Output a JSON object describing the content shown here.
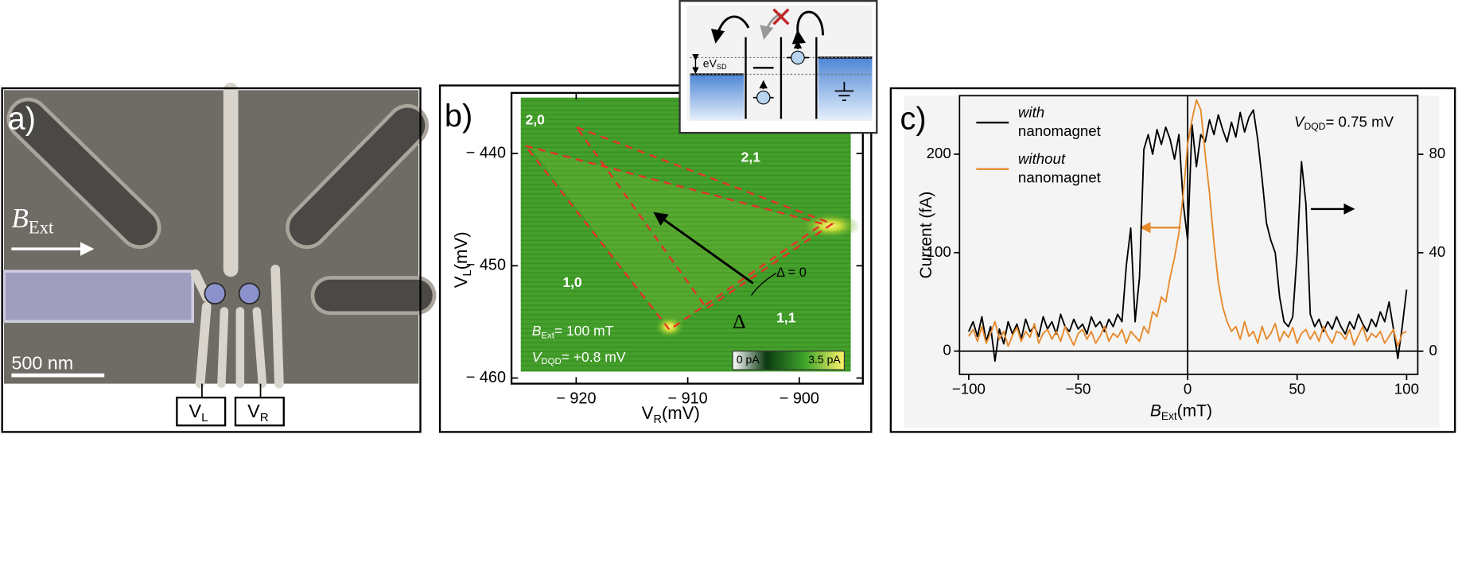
{
  "panel_a": {
    "label": "a)",
    "field": {
      "symbol": "B",
      "subscript": "Ext"
    },
    "scale_bar": "500 nm",
    "gates": [
      {
        "symbol": "V",
        "subscript": "L"
      },
      {
        "symbol": "V",
        "subscript": "R"
      }
    ]
  },
  "inset": {
    "bias": {
      "symbol": "eV",
      "subscript": "SD"
    }
  },
  "chart_data": [
    {
      "type": "heatmap",
      "title": "b)",
      "xlabel": {
        "symbol": "V",
        "subscript": "R",
        "unit": "(mV)"
      },
      "ylabel": {
        "symbol": "V",
        "subscript": "L",
        "unit": "(mV)"
      },
      "xlim": [
        -925.8,
        -894.3
      ],
      "ylim": [
        -460.5,
        -434.6
      ],
      "xticks": [
        {
          "value": -920,
          "label": "− 920"
        },
        {
          "value": -910,
          "label": "− 910"
        },
        {
          "value": -900,
          "label": "− 900"
        }
      ],
      "yticks": [
        {
          "value": -440,
          "label": "− 440"
        },
        {
          "value": -450,
          "label": "− 450"
        },
        {
          "value": -460,
          "label": "− 460"
        }
      ],
      "region_labels": [
        "2,0",
        "2,1",
        "1,0",
        "1,1"
      ],
      "detuning_labels": [
        "Δ = 0",
        "Δ"
      ],
      "annotations": [
        {
          "symbol": "B",
          "subscript": "Ext",
          "text": "= 100 mT"
        },
        {
          "symbol": "V",
          "subscript": "DQD",
          "text": "= +0.8 mV"
        }
      ],
      "colorbar": {
        "min_label": "0 pA",
        "max_label": "3.5 pA"
      }
    },
    {
      "type": "line",
      "title": "c)",
      "xlabel": {
        "symbol": "B",
        "subscript": "Ext",
        "unit": "(mT)"
      },
      "ylabel": "Current (fA)",
      "annotation": {
        "symbol": "V",
        "subscript": "DQD",
        "text": "= 0.75 mV"
      },
      "xlim": [
        -104.2,
        105.1
      ],
      "ylim": [
        -23.6,
        259.4
      ],
      "y2lim": [
        -9.4,
        103.8
      ],
      "xticks": [
        {
          "value": -100,
          "label": "−100"
        },
        {
          "value": -50,
          "label": "−50"
        },
        0,
        50,
        100
      ],
      "yticks": [
        0,
        100,
        200
      ],
      "y2ticks": [
        0,
        40,
        80
      ],
      "x": [
        -100,
        -98,
        -96,
        -94,
        -92,
        -90,
        -88,
        -86,
        -84,
        -82,
        -80,
        -78,
        -76,
        -74,
        -72,
        -70,
        -68,
        -66,
        -64,
        -62,
        -60,
        -58,
        -56,
        -54,
        -52,
        -50,
        -48,
        -46,
        -44,
        -42,
        -40,
        -38,
        -36,
        -34,
        -32,
        -30,
        -28,
        -26,
        -24,
        -22,
        -20,
        -18,
        -16,
        -14,
        -12,
        -10,
        -8,
        -6,
        -4,
        -2,
        0,
        2,
        4,
        6,
        8,
        10,
        12,
        14,
        16,
        18,
        20,
        22,
        24,
        26,
        28,
        30,
        32,
        34,
        36,
        38,
        40,
        42,
        44,
        46,
        48,
        50,
        52,
        54,
        56,
        58,
        60,
        62,
        64,
        66,
        68,
        70,
        72,
        74,
        76,
        78,
        80,
        82,
        84,
        86,
        88,
        90,
        92,
        94,
        96,
        98,
        100
      ],
      "series": [
        {
          "name": "with nanomagnet",
          "color": "#000000",
          "axis": "y2",
          "values": [
            8,
            12,
            6,
            14,
            4,
            10,
            -4,
            9,
            3,
            12,
            7,
            11,
            5,
            13,
            8,
            10,
            6,
            14,
            9,
            12,
            7,
            15,
            10,
            8,
            13,
            9,
            11,
            7,
            14,
            10,
            12,
            8,
            13,
            10,
            15,
            12,
            35,
            50,
            12,
            30,
            82,
            88,
            80,
            90,
            84,
            91,
            86,
            78,
            88,
            60,
            45,
            92,
            75,
            88,
            85,
            94,
            88,
            96,
            90,
            85,
            93,
            87,
            97,
            89,
            95,
            98,
            86,
            70,
            52,
            45,
            40,
            22,
            12,
            10,
            14,
            40,
            77,
            60,
            15,
            10,
            13,
            8,
            12,
            9,
            14,
            10,
            7,
            12,
            9,
            15,
            11,
            8,
            13,
            10,
            16,
            12,
            20,
            9,
            -3,
            10,
            25
          ]
        },
        {
          "name": "without nanomagnet",
          "color": "#e8892b",
          "values": [
            15,
            22,
            10,
            25,
            8,
            18,
            30,
            12,
            20,
            5,
            16,
            24,
            10,
            20,
            14,
            28,
            8,
            18,
            22,
            12,
            20,
            10,
            25,
            15,
            6,
            18,
            22,
            12,
            20,
            8,
            15,
            25,
            10,
            18,
            14,
            22,
            8,
            20,
            15,
            10,
            25,
            18,
            40,
            35,
            55,
            50,
            75,
            95,
            120,
            160,
            210,
            235,
            255,
            245,
            200,
            160,
            110,
            70,
            45,
            30,
            20,
            25,
            12,
            30,
            15,
            20,
            8,
            25,
            12,
            18,
            28,
            10,
            20,
            14,
            24,
            8,
            18,
            22,
            12,
            20,
            10,
            25,
            15,
            8,
            20,
            18,
            12,
            22,
            6,
            16,
            25,
            10,
            18,
            14,
            20,
            8,
            15,
            22,
            5,
            18,
            20
          ]
        }
      ]
    }
  ]
}
